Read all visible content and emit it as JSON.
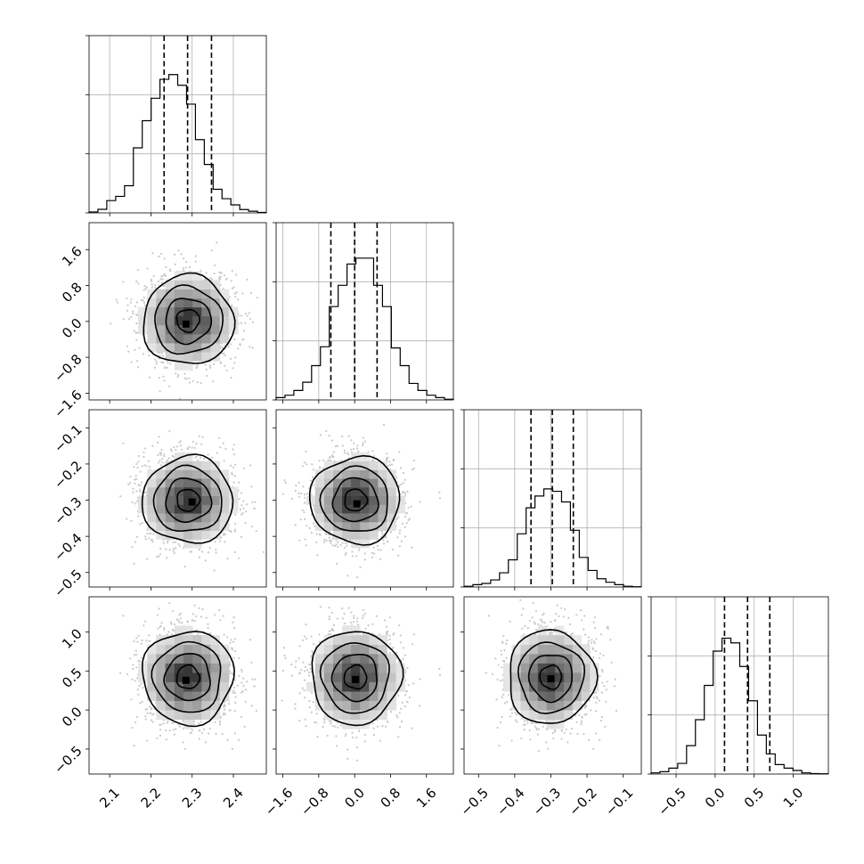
{
  "chart_data": {
    "type": "corner",
    "parameters": [
      {
        "index": 0,
        "range": [
          2.05,
          2.48
        ],
        "ticks": [
          2.1,
          2.2,
          2.3,
          2.4
        ],
        "tick_labels": [
          "2.1",
          "2.2",
          "2.3",
          "2.4"
        ],
        "mean": 2.29,
        "sd": 0.055,
        "quantiles": [
          2.232,
          2.289,
          2.347
        ],
        "hist_ticks": [
          0,
          25,
          50,
          75
        ],
        "hist_ylim": [
          0,
          75
        ]
      },
      {
        "index": 1,
        "range": [
          -1.75,
          2.2
        ],
        "ticks": [
          -1.6,
          -0.8,
          0.0,
          0.8,
          1.6
        ],
        "tick_labels": [
          "−1.6",
          "−0.8",
          "0.0",
          "0.8",
          "1.6"
        ],
        "mean": 0.02,
        "sd": 0.5,
        "quantiles": [
          -0.53,
          0.0,
          0.5
        ],
        "hist_ticks": [
          0,
          25,
          50,
          75
        ],
        "hist_ylim": [
          0,
          75
        ]
      },
      {
        "index": 2,
        "range": [
          -0.54,
          -0.05
        ],
        "ticks": [
          -0.5,
          -0.4,
          -0.3,
          -0.2,
          -0.1
        ],
        "tick_labels": [
          "−0.5",
          "−0.4",
          "−0.3",
          "−0.2",
          "−0.1"
        ],
        "mean": -0.3,
        "sd": 0.06,
        "quantiles": [
          -0.355,
          -0.296,
          -0.238
        ],
        "hist_ticks": [
          0,
          25,
          50,
          75
        ],
        "hist_ylim": [
          0,
          75
        ]
      },
      {
        "index": 3,
        "range": [
          -0.82,
          1.45
        ],
        "ticks": [
          -0.5,
          0.0,
          0.5,
          1.0
        ],
        "tick_labels": [
          "−0.5",
          "0.0",
          "0.5",
          "1.0"
        ],
        "mean": 0.42,
        "sd": 0.3,
        "quantiles": [
          0.12,
          0.415,
          0.7
        ],
        "hist_ticks": [
          0,
          25,
          50,
          75
        ],
        "hist_ylim": [
          0,
          75
        ]
      }
    ],
    "histograms": [
      {
        "param": 0,
        "bins": 20,
        "counts": [
          0.4,
          1.5,
          5.2,
          7.0,
          11.5,
          27.5,
          39.0,
          48.5,
          56.5,
          58.5,
          54.0,
          46.0,
          31.0,
          20.5,
          10.0,
          6.0,
          3.4,
          1.4,
          0.7,
          0.2
        ]
      },
      {
        "param": 1,
        "bins": 20,
        "counts": [
          1.0,
          2.0,
          4.0,
          7.5,
          14.5,
          22.5,
          39.5,
          48.5,
          57.5,
          60.0,
          60.0,
          48.5,
          39.5,
          22.0,
          14.5,
          7.0,
          4.0,
          2.0,
          1.0,
          0.3
        ]
      },
      {
        "param": 2,
        "bins": 20,
        "counts": [
          0.3,
          1.0,
          1.5,
          3.0,
          6.0,
          11.5,
          22.5,
          33.5,
          38.5,
          41.5,
          40.5,
          36.0,
          24.0,
          12.5,
          7.0,
          3.5,
          2.0,
          1.0,
          0.3,
          0.1
        ]
      },
      {
        "param": 3,
        "bins": 20,
        "counts": [
          0.5,
          1.0,
          2.5,
          4.5,
          12.0,
          23.0,
          37.5,
          52.0,
          57.5,
          55.5,
          45.5,
          31.0,
          16.5,
          8.5,
          4.0,
          2.5,
          1.5,
          0.5,
          0.2,
          0.1
        ]
      }
    ],
    "pairs": [
      {
        "x": 0,
        "y": 1,
        "peak": [
          2.285,
          -0.06
        ]
      },
      {
        "x": 0,
        "y": 2,
        "peak": [
          2.3,
          -0.305
        ]
      },
      {
        "x": 1,
        "y": 2,
        "peak": [
          0.05,
          -0.31
        ]
      },
      {
        "x": 0,
        "y": 3,
        "peak": [
          2.285,
          0.38
        ]
      },
      {
        "x": 1,
        "y": 3,
        "peak": [
          0.02,
          0.39
        ]
      },
      {
        "x": 2,
        "y": 3,
        "peak": [
          -0.3,
          0.4
        ]
      }
    ],
    "contour_levels_sigma": [
      0.5,
      1.0,
      1.5,
      2.0
    ],
    "grid": true
  }
}
